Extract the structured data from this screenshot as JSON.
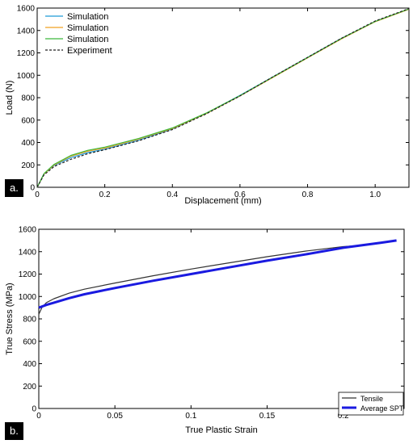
{
  "chart_data": [
    {
      "type": "line",
      "panel_label": "a.",
      "xlabel": "Displacement (mm)",
      "ylabel": "Load (N)",
      "xlim": [
        0,
        1.1
      ],
      "ylim": [
        0,
        1600
      ],
      "xticks": [
        "0",
        "0.2",
        "0.4",
        "0.6",
        "0.8",
        "1.0"
      ],
      "xtick_values": [
        0,
        0.2,
        0.4,
        0.6,
        0.8,
        1.0
      ],
      "yticks": [
        "0",
        "200",
        "400",
        "600",
        "800",
        "1000",
        "1200",
        "1400",
        "1600"
      ],
      "ytick_values": [
        0,
        200,
        400,
        600,
        800,
        1000,
        1200,
        1400,
        1600
      ],
      "grid": false,
      "legend_position": "top-left",
      "series": [
        {
          "name": "Simulation",
          "color": "#1f9bd8",
          "style": "solid",
          "x": [
            0,
            0.02,
            0.05,
            0.1,
            0.15,
            0.2,
            0.3,
            0.4,
            0.5,
            0.6,
            0.7,
            0.8,
            0.9,
            1.0,
            1.1
          ],
          "y": [
            0,
            120,
            195,
            265,
            310,
            340,
            420,
            520,
            660,
            820,
            990,
            1160,
            1330,
            1480,
            1590
          ]
        },
        {
          "name": "Simulation",
          "color": "#f0a020",
          "style": "solid",
          "x": [
            0,
            0.02,
            0.05,
            0.1,
            0.15,
            0.2,
            0.3,
            0.4,
            0.5,
            0.6,
            0.7,
            0.8,
            0.9,
            1.0,
            1.1
          ],
          "y": [
            0,
            118,
            200,
            278,
            322,
            350,
            430,
            525,
            658,
            815,
            985,
            1155,
            1325,
            1478,
            1590
          ]
        },
        {
          "name": "Simulation",
          "color": "#3cb83c",
          "style": "solid",
          "x": [
            0,
            0.02,
            0.05,
            0.1,
            0.15,
            0.2,
            0.3,
            0.4,
            0.5,
            0.6,
            0.7,
            0.8,
            0.9,
            1.0,
            1.1
          ],
          "y": [
            0,
            122,
            205,
            285,
            330,
            358,
            435,
            530,
            662,
            818,
            988,
            1158,
            1328,
            1480,
            1592
          ]
        },
        {
          "name": "Experiment",
          "color": "#222222",
          "style": "dashed",
          "x": [
            0,
            0.02,
            0.05,
            0.1,
            0.15,
            0.2,
            0.3,
            0.4,
            0.5,
            0.6,
            0.7,
            0.8,
            0.9,
            1.0,
            1.1
          ],
          "y": [
            0,
            110,
            185,
            250,
            300,
            335,
            415,
            515,
            655,
            815,
            990,
            1160,
            1330,
            1485,
            1595
          ]
        }
      ]
    },
    {
      "type": "line",
      "panel_label": "b.",
      "xlabel": "True Plastic Strain",
      "ylabel": "True Stress (MPa)",
      "xlim": [
        0,
        0.24
      ],
      "ylim": [
        0,
        1600
      ],
      "xticks": [
        "0",
        "0.05",
        "0.1",
        "0.15",
        "0.2"
      ],
      "xtick_values": [
        0,
        0.05,
        0.1,
        0.15,
        0.2
      ],
      "yticks": [
        "0",
        "200",
        "400",
        "600",
        "800",
        "1000",
        "1200",
        "1400",
        "1600"
      ],
      "ytick_values": [
        0,
        200,
        400,
        600,
        800,
        1000,
        1200,
        1400,
        1600
      ],
      "grid": false,
      "legend_position": "bottom-right",
      "series": [
        {
          "name": "Tensile",
          "color": "#333333",
          "style": "solid",
          "width": 1.2,
          "x": [
            0,
            0.002,
            0.005,
            0.01,
            0.02,
            0.03,
            0.05,
            0.075,
            0.1,
            0.125,
            0.15,
            0.175,
            0.2,
            0.205
          ],
          "y": [
            840,
            900,
            945,
            980,
            1030,
            1065,
            1120,
            1185,
            1245,
            1300,
            1355,
            1405,
            1445,
            1450
          ]
        },
        {
          "name": "Average SPT",
          "color": "#1a1ae0",
          "style": "solid",
          "width": 3,
          "x": [
            0,
            0.005,
            0.01,
            0.02,
            0.03,
            0.05,
            0.075,
            0.1,
            0.125,
            0.15,
            0.175,
            0.2,
            0.225,
            0.235
          ],
          "y": [
            900,
            925,
            945,
            985,
            1020,
            1075,
            1140,
            1200,
            1260,
            1320,
            1375,
            1435,
            1480,
            1500
          ]
        }
      ]
    }
  ]
}
